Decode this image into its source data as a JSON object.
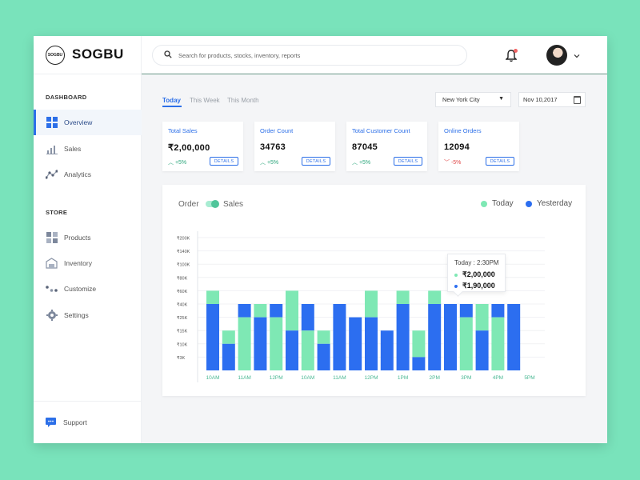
{
  "brand": {
    "logo_mark": "SOGBU",
    "name": "SOGBU"
  },
  "search": {
    "placeholder": "Search for  products, stocks, inventory, reports"
  },
  "sidebar": {
    "dashboard_title": "DASHBOARD",
    "store_title": "STORE",
    "dashboard_items": [
      {
        "label": "Overview",
        "icon": "grid-icon",
        "active": true
      },
      {
        "label": "Sales",
        "icon": "bar-chart-icon"
      },
      {
        "label": "Analytics",
        "icon": "analytics-icon"
      }
    ],
    "store_items": [
      {
        "label": "Products",
        "icon": "products-icon"
      },
      {
        "label": "Inventory",
        "icon": "warehouse-icon"
      },
      {
        "label": "Customize",
        "icon": "customize-icon"
      },
      {
        "label": "Settings",
        "icon": "gear-icon"
      }
    ],
    "support_label": "Support"
  },
  "tabs": {
    "today": "Today",
    "week": "This Week",
    "month": "This Month"
  },
  "filters": {
    "city": "New York City",
    "date": "Nov 10,2017"
  },
  "cards": [
    {
      "title": "Total Sales",
      "value": "₹2,00,000",
      "change": "+5%",
      "direction": "up",
      "button": "DETAILS"
    },
    {
      "title": "Order Count",
      "value": "34763",
      "change": "+5%",
      "direction": "up",
      "button": "DETAILS"
    },
    {
      "title": "Total Customer Count",
      "value": "87045",
      "change": "+5%",
      "direction": "up",
      "button": "DETAILS"
    },
    {
      "title": "Online Orders",
      "value": "12094",
      "change": "-5%",
      "direction": "down",
      "button": "DETAILS"
    }
  ],
  "chart_toggle": {
    "left": "Order",
    "right": "Sales"
  },
  "tooltip": {
    "title": "Today : 2:30PM",
    "today_value": "₹2,00,000",
    "yesterday_value": "₹1,90,000"
  },
  "colors": {
    "accent": "#2c6fe8",
    "today": "#7ee8b4",
    "yesterday": "#2c6ef0",
    "background": "#79e3bb"
  },
  "chart_data": {
    "type": "bar",
    "title": "",
    "legend": [
      "Today",
      "Yesterday"
    ],
    "legend_position": "top-right",
    "y_ticks": [
      "₹3K",
      "₹10K",
      "₹15K",
      "₹25K",
      "₹40K",
      "₹60K",
      "₹80K",
      "₹100K",
      "₹140K",
      "₹200K"
    ],
    "x_labels": [
      "10AM",
      "11AM",
      "12PM",
      "10AM",
      "11AM",
      "12PM",
      "1PM",
      "2PM",
      "3PM",
      "4PM",
      "5PM"
    ],
    "grid": true,
    "series": [
      {
        "name": "Today",
        "values": [
          6,
          3,
          4,
          5,
          4,
          6,
          3,
          3,
          5,
          4,
          6,
          3,
          6,
          3,
          6,
          5,
          4,
          5,
          4,
          5
        ]
      },
      {
        "name": "Yesterday",
        "values": [
          5,
          2,
          5,
          4,
          5,
          3,
          5,
          2,
          5,
          4,
          4,
          3,
          5,
          1,
          5,
          5,
          5,
          3,
          5,
          5
        ]
      }
    ]
  }
}
